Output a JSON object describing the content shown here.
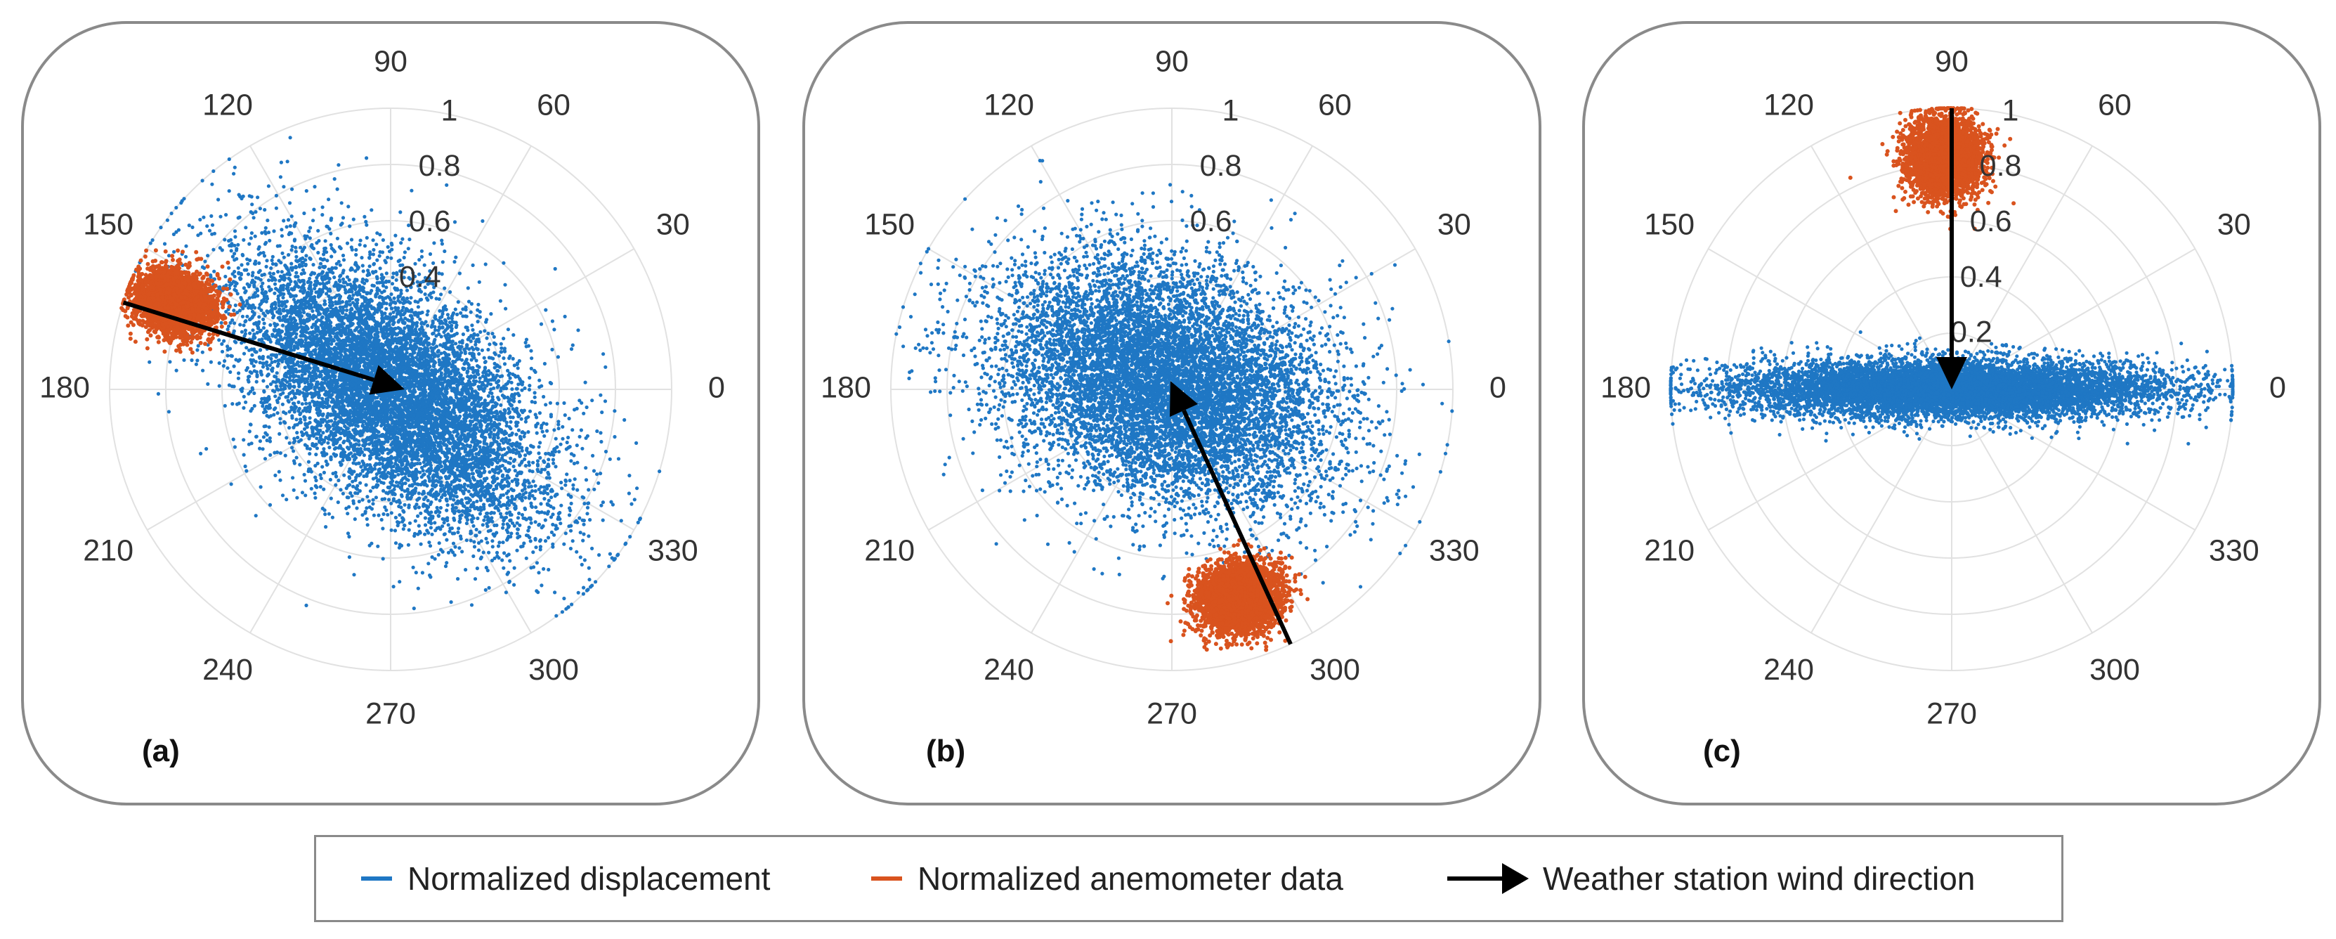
{
  "colors": {
    "displacement": "#1f77c4",
    "anemometer": "#d9531e",
    "arrow": "#000000",
    "grid": "#e1e1e1"
  },
  "legend": {
    "displacement_label": "Normalized displacement",
    "anemometer_label": "Normalized anemometer data",
    "wind_label": "Weather station wind direction"
  },
  "chart_data": [
    {
      "type": "scatter",
      "coordinate_system": "polar",
      "panel_label": "(a)",
      "theta_ticks": [
        "0",
        "30",
        "60",
        "90",
        "120",
        "150",
        "180",
        "210",
        "240",
        "270",
        "300",
        "330"
      ],
      "r_ticks": [
        "0.4",
        "0.6",
        "0.8",
        "1"
      ],
      "r_tick_values": [
        0.4,
        0.6,
        0.8,
        1
      ],
      "rlim": [
        0,
        1
      ],
      "series": [
        {
          "name": "Normalized displacement",
          "kind": "cloud",
          "mean_theta_deg": 145,
          "mean_r": 0.0,
          "major_axis_deg": 140,
          "sigma_major": 0.33,
          "sigma_minor": 0.17,
          "max_r": 1.0
        },
        {
          "name": "Normalized anemometer data",
          "kind": "cloud",
          "mean_theta_deg": 158,
          "mean_r": 0.83,
          "major_axis_deg": 160,
          "sigma_major": 0.07,
          "sigma_minor": 0.055,
          "max_r": 1.0
        }
      ],
      "arrow": {
        "from_theta_deg": 162,
        "from_r": 1.0,
        "to_theta_deg": 0,
        "to_r": 0.05
      }
    },
    {
      "type": "scatter",
      "coordinate_system": "polar",
      "panel_label": "(b)",
      "theta_ticks": [
        "0",
        "30",
        "60",
        "90",
        "120",
        "150",
        "180",
        "210",
        "240",
        "270",
        "300",
        "330"
      ],
      "r_ticks": [
        "0.6",
        "0.8",
        "1"
      ],
      "r_tick_values": [
        0.6,
        0.8,
        1
      ],
      "rlim": [
        0,
        1
      ],
      "series": [
        {
          "name": "Normalized displacement",
          "kind": "cloud",
          "mean_theta_deg": 120,
          "mean_r": 0.03,
          "major_axis_deg": 160,
          "sigma_major": 0.31,
          "sigma_minor": 0.2,
          "max_r": 1.0
        },
        {
          "name": "Normalized anemometer data",
          "kind": "cloud",
          "mean_theta_deg": 288,
          "mean_r": 0.78,
          "major_axis_deg": 20,
          "sigma_major": 0.075,
          "sigma_minor": 0.06,
          "max_r": 1.0
        }
      ],
      "arrow": {
        "from_theta_deg": 295,
        "from_r": 1.0,
        "to_theta_deg": 100,
        "to_r": 0.03
      }
    },
    {
      "type": "scatter",
      "coordinate_system": "polar",
      "panel_label": "(c)",
      "theta_ticks": [
        "0",
        "30",
        "60",
        "90",
        "120",
        "150",
        "180",
        "210",
        "240",
        "270",
        "300",
        "330"
      ],
      "r_ticks": [
        "0.2",
        "0.4",
        "0.6",
        "0.8",
        "1"
      ],
      "r_tick_values": [
        0.2,
        0.4,
        0.6,
        0.8,
        1
      ],
      "rlim": [
        0,
        1
      ],
      "series": [
        {
          "name": "Normalized displacement",
          "kind": "cloud",
          "mean_theta_deg": 0,
          "mean_r": 0.0,
          "major_axis_deg": 0,
          "sigma_major": 0.38,
          "sigma_minor": 0.05,
          "max_r": 1.0
        },
        {
          "name": "Normalized anemometer data",
          "kind": "cloud",
          "mean_theta_deg": 92,
          "mean_r": 0.83,
          "major_axis_deg": 90,
          "sigma_major": 0.07,
          "sigma_minor": 0.065,
          "max_r": 1.0
        }
      ],
      "arrow": {
        "from_theta_deg": 90,
        "from_r": 1.0,
        "to_theta_deg": 90,
        "to_r": 0.0
      }
    }
  ]
}
